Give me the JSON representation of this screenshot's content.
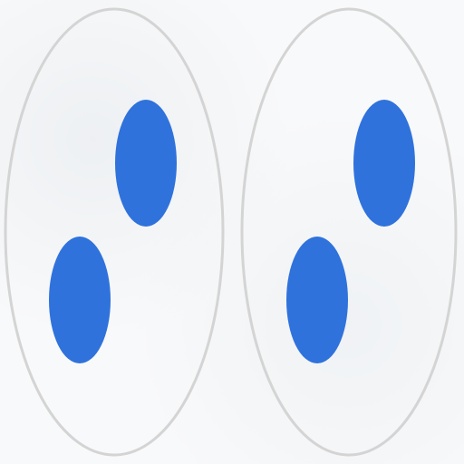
{
  "scene": {
    "background_color": "#f8f9fa",
    "outline_color": "#d4d4d4",
    "dot_color": "#2f72dc"
  },
  "groups": [
    {
      "name": "left-cell",
      "dots": [
        {
          "name": "dot-upper"
        },
        {
          "name": "dot-lower"
        }
      ]
    },
    {
      "name": "right-cell",
      "dots": [
        {
          "name": "dot-upper"
        },
        {
          "name": "dot-lower"
        }
      ]
    }
  ]
}
